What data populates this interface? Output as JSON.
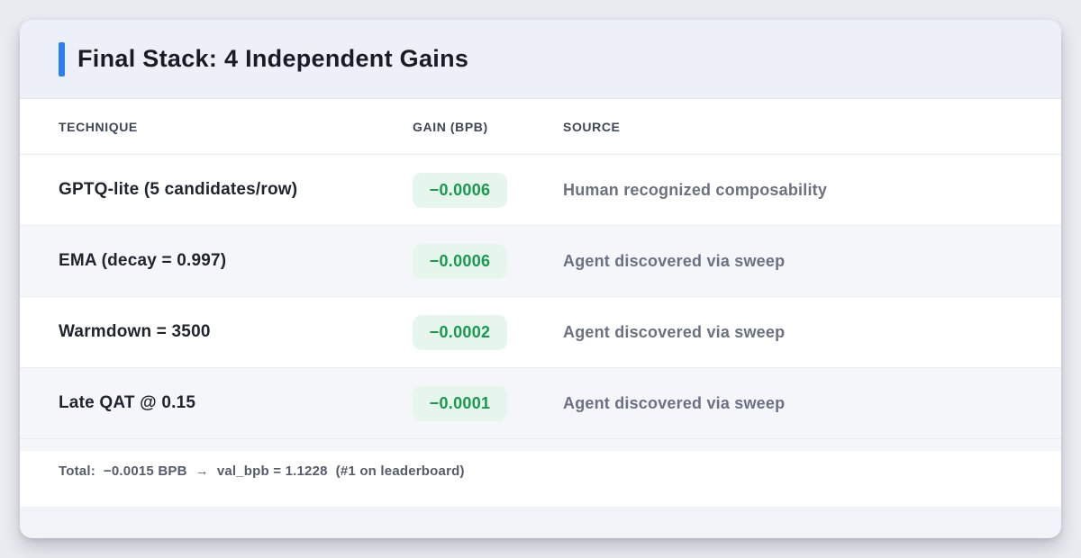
{
  "header": {
    "title": "Final Stack: 4 Independent Gains"
  },
  "table": {
    "columns": [
      "TECHNIQUE",
      "GAIN (BPB)",
      "SOURCE"
    ],
    "rows": [
      {
        "technique": "GPTQ-lite (5 candidates/row)",
        "gain": "−0.0006",
        "source": "Human recognized composability"
      },
      {
        "technique": "EMA (decay = 0.997)",
        "gain": "−0.0006",
        "source": "Agent discovered via sweep"
      },
      {
        "technique": "Warmdown = 3500",
        "gain": "−0.0002",
        "source": "Agent discovered via sweep"
      },
      {
        "technique": "Late QAT @ 0.15",
        "gain": "−0.0001",
        "source": "Agent discovered via sweep"
      }
    ]
  },
  "footer": {
    "total_label": "Total:",
    "total_gain": "−0.0015 BPB",
    "arrow": "→",
    "result": "val_bpb = 1.1228",
    "note": "(#1 on leaderboard)"
  },
  "colors": {
    "accent_blue": "#2b7ff0",
    "badge_green_text": "#179a4e",
    "badge_green_bg": "#e7f6ed",
    "header_band_bg": "#edf0f8",
    "zebra_stripe_bg": "#f5f6fa",
    "bottom_strip_bg": "#f2f3f8",
    "page_bg": "#ebecf1"
  }
}
